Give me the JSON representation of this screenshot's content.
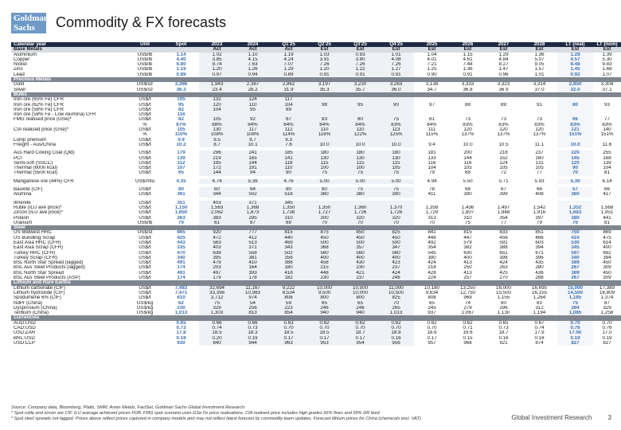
{
  "logo": "Goldman Sachs",
  "title": "Commodity & FX forecasts",
  "header": [
    "Calendar year",
    "Unit",
    "Spot",
    "2023",
    "2024",
    "Q1'25",
    "Q2'25",
    "Q3'25",
    "Q4'25",
    "2025",
    "2026",
    "2027",
    "2028",
    "LT (real)",
    "LT (nom)"
  ],
  "subheader": [
    "Base Metals",
    "",
    "",
    "Act",
    "Act",
    "Act",
    "Est",
    "Est",
    "Est",
    "Est",
    "Est",
    "Est",
    "Est",
    "Est",
    "Est"
  ],
  "rows": [
    [
      "Aluminium",
      "US$/lb",
      "1.14",
      "1.02",
      "1.10",
      "1.19",
      "1.03",
      "0.93",
      "1.01",
      "1.04",
      "1.15",
      "1.29",
      "1.36",
      "1.28",
      "1.39"
    ],
    [
      "Copper",
      "US$/lb",
      "4.40",
      "3.85",
      "4.15",
      "4.24",
      "3.91",
      "3.80",
      "4.08",
      "4.01",
      "4.61",
      "4.84",
      "5.07",
      "4.57",
      "5.30"
    ],
    [
      "Nickel",
      "US$/lb",
      "6.80",
      "9.74",
      "7.63",
      "7.07",
      "7.26",
      "7.26",
      "7.26",
      "7.21",
      "7.48",
      "8.27",
      "9.05",
      "8.48",
      "9.83"
    ],
    [
      "Zinc",
      "US$/lb",
      "1.19",
      "1.20",
      "1.26",
      "1.29",
      "1.20",
      "1.22",
      "1.27",
      "1.25",
      "1.36",
      "1.47",
      "1.57",
      "1.45",
      "1.68"
    ],
    [
      "Lead",
      "US$/lb",
      "0.89",
      "0.97",
      "0.94",
      "0.89",
      "0.91",
      "0.91",
      "0.91",
      "0.90",
      "0.91",
      "0.96",
      "1.01",
      "0.92",
      "1.07"
    ],
    {
      "section": "Precious Metals"
    },
    [
      "Gold",
      "US$/oz",
      "3,386",
      "1,943",
      "2,387",
      "2,862",
      "3,197",
      "3,230",
      "3,263",
      "3,138",
      "3,333",
      "3,323",
      "3,314",
      "2,850",
      "3,304"
    ],
    [
      "Silver",
      "US$/oz",
      "36.3",
      "23.4",
      "28.2",
      "31.9",
      "35.3",
      "35.7",
      "36.0",
      "34.7",
      "36.8",
      "36.9",
      "37.0",
      "32.0",
      "37.1"
    ],
    {
      "section": "Bulks"
    },
    [
      "Iron ore (65% Fe) CFR",
      "US$/t",
      "105",
      "132",
      "124",
      "117",
      "",
      "",
      "",
      "",
      "",
      "",
      "",
      "",
      ""
    ],
    [
      "Iron ore (62% Fe) CFR",
      "US$/t",
      "95",
      "120",
      "110",
      "104",
      "98",
      "95",
      "90",
      "97",
      "88",
      "89",
      "91",
      "80",
      "93"
    ],
    [
      "Iron ore (58% Fe) CFR",
      "US$/t",
      "82",
      "104",
      "95",
      "89",
      "",
      "",
      "",
      "",
      "",
      "",
      "",
      "",
      ""
    ],
    [
      "Iron ore (58% Fe - Low Alumina) CFR",
      "US$/t",
      "116",
      "",
      "",
      "",
      "",
      "",
      "",
      "",
      "",
      "",
      "",
      "",
      ""
    ],
    [
      "FMG realised price (GSe)*",
      "US$/t",
      "82",
      "105",
      "92",
      "87",
      "83",
      "80",
      "75",
      "81",
      "73",
      "73",
      "73",
      "66",
      "77"
    ],
    [
      "",
      "%",
      "87%",
      "88%",
      "84%",
      "84%",
      "84%",
      "84%",
      "83%",
      "84%",
      "83%",
      "83%",
      "83%",
      "83%",
      "83%"
    ],
    [
      "CIA realised price (GSe)*",
      "US$/t",
      "105",
      "130",
      "117",
      "112",
      "110",
      "110",
      "113",
      "111",
      "120",
      "120",
      "120",
      "121",
      "140"
    ],
    [
      "",
      "%",
      "110%",
      "108%",
      "108%",
      "114%",
      "116%",
      "122%",
      "125%",
      "115%",
      "137%",
      "137%",
      "137%",
      "151%",
      "151%"
    ],
    [
      "Lump premium",
      "US$/t",
      "9.9",
      "9.5",
      "8.7",
      "9.3",
      "",
      "",
      "",
      "",
      "",
      "",
      "",
      "",
      ""
    ],
    [
      "Freight - Aus/China",
      "US$/t",
      "10.2",
      "8.7",
      "10.1",
      "7.6",
      "10.0",
      "10.0",
      "10.0",
      "9.4",
      "10.0",
      "10.5",
      "11.1",
      "10.0",
      "11.6"
    ],
    {
      "blank": true
    },
    [
      "Aus Hard Coking Coal (Qld)",
      "US$/t",
      "179",
      "296",
      "241",
      "185",
      "180",
      "180",
      "180",
      "181",
      "200",
      "218",
      "237",
      "220",
      "255"
    ],
    [
      "PCI",
      "US$/t",
      "139",
      "219",
      "165",
      "141",
      "130",
      "130",
      "130",
      "133",
      "144",
      "152",
      "160",
      "145",
      "168"
    ],
    [
      "Semi-soft (SSCC)",
      "US$/t",
      "112",
      "195",
      "144",
      "118",
      "115",
      "115",
      "115",
      "116",
      "116",
      "124",
      "131",
      "120",
      "139"
    ],
    [
      "Thermal (6000 kcal)",
      "US$/t",
      "107",
      "172",
      "191",
      "110",
      "100",
      "100",
      "105",
      "104",
      "105",
      "105",
      "105",
      "90",
      "104"
    ],
    [
      "Thermal (5500 kcal)",
      "US$/t",
      "65",
      "144",
      "94",
      "90",
      "75",
      "75",
      "75",
      "79",
      "68",
      "72",
      "77",
      "70",
      "81"
    ],
    {
      "blank": true
    },
    [
      "Manganese ore (44%) CFR",
      "US$/mtu",
      "4.35",
      "4.74",
      "5.39",
      "4.76",
      "5.00",
      "5.00",
      "5.00",
      "4.94",
      "5.50",
      "5.71",
      "5.93",
      "5.30",
      "6.14"
    ],
    {
      "blank": true
    },
    [
      "Bauxite (CIF)",
      "US$/t",
      "80",
      "60",
      "64",
      "80",
      "80",
      "75",
      "75",
      "78",
      "68",
      "67",
      "66",
      "57",
      "66"
    ],
    [
      "Alumina",
      "US$/t",
      "361",
      "344",
      "502",
      "516",
      "360",
      "380",
      "390",
      "411",
      "390",
      "399",
      "408",
      "360",
      "417"
    ],
    {
      "blank": true
    },
    [
      "Ilmenite",
      "US$/t",
      "351",
      "403",
      "371",
      "345",
      "",
      "",
      "",
      "",
      "",
      "",
      "",
      "",
      ""
    ],
    [
      "Rutile (ILU ave price)*",
      "US$/t",
      "1,150",
      "1,563",
      "1,368",
      "1,350",
      "1,350",
      "1,360",
      "1,370",
      "1,358",
      "1,436",
      "1,497",
      "1,542",
      "1,352",
      "1,568"
    ],
    [
      "Zircon (ILU ave price)*",
      "US$/t",
      "1,850",
      "2,062",
      "1,873",
      "1,738",
      "1,727",
      "1,726",
      "1,726",
      "1,729",
      "1,807",
      "1,848",
      "1,916",
      "1,683",
      "1,951"
    ],
    [
      "Potash",
      "US$/t",
      "363",
      "383",
      "295",
      "310",
      "300",
      "320",
      "320",
      "313",
      "310",
      "354",
      "397",
      "380",
      "441"
    ],
    [
      "Uranium",
      "US$/lb",
      "70",
      "61",
      "87",
      "69",
      "70",
      "70",
      "70",
      "70",
      "75",
      "77",
      "79",
      "70",
      "81"
    ],
    {
      "section": "Steel"
    },
    [
      "US Midwest HRC",
      "US$/st",
      "865",
      "920",
      "777",
      "815",
      "875",
      "850",
      "825",
      "841",
      "815",
      "833",
      "851",
      "750",
      "869"
    ],
    [
      "US Bundling Scrap",
      "US$/t",
      "425",
      "472",
      "412",
      "440",
      "450",
      "450",
      "450",
      "448",
      "447",
      "456",
      "466",
      "410",
      "475"
    ],
    [
      "East Asia HRC (CFR)",
      "US$/t",
      "443",
      "563",
      "513",
      "469",
      "500",
      "500",
      "500",
      "492",
      "579",
      "591",
      "603",
      "530",
      "614"
    ],
    [
      "East Asia Scrap (CFR)",
      "US$/t",
      "335",
      "403",
      "371",
      "343",
      "368",
      "357",
      "347",
      "354",
      "382",
      "388",
      "394",
      "345",
      "400"
    ],
    [
      "Turkey HRC (CFR)",
      "US$/t",
      "470",
      "638",
      "558",
      "502",
      "560",
      "560",
      "560",
      "545",
      "630",
      "651",
      "671",
      "597",
      "692"
    ],
    [
      "Turkey Scrap (CFR)",
      "US$/t",
      "340",
      "395",
      "381",
      "358",
      "400",
      "400",
      "400",
      "390",
      "400",
      "398",
      "396",
      "340",
      "394"
    ],
    [
      "BSL North Star Spread (lagged)",
      "US$/t",
      "491",
      "479",
      "410",
      "388",
      "458",
      "430",
      "423",
      "424",
      "413",
      "424",
      "435",
      "389",
      "450"
    ],
    [
      "BSL Aus Steel Products (lagged)",
      "US$/t",
      "174",
      "203",
      "164",
      "180",
      "215",
      "230",
      "237",
      "218",
      "250",
      "263",
      "280",
      "267",
      "309"
    ],
    [
      "BSL North Star Spread",
      "US$/t",
      "491",
      "497",
      "393",
      "418",
      "448",
      "421",
      "424",
      "428",
      "413",
      "425",
      "436",
      "389",
      "450"
    ],
    [
      "BSL Aus Steel Products (ASP)",
      "US$/t",
      "174",
      "179",
      "178",
      "182",
      "230",
      "237",
      "248",
      "224",
      "257",
      "270",
      "288",
      "267",
      "309"
    ],
    {
      "section": "Lithium and Rare Earths"
    },
    [
      "Lithium carbonate (CIF)",
      "US$/t",
      "7,483",
      "32,694",
      "11,167",
      "9,222",
      "10,000",
      "10,500",
      "11,000",
      "10,180",
      "13,250",
      "16,000",
      "16,695",
      "15,000",
      "17,389"
    ],
    [
      "Lithium hydroxide (CIF)",
      "US$/t",
      "7,471",
      "33,398",
      "10,983",
      "8,534",
      "9,500",
      "10,000",
      "10,500",
      "9,634",
      "12,750",
      "15,500",
      "16,155",
      "14,500",
      "16,809"
    ],
    [
      "Spodumene 6% (CIF)",
      "US$/t",
      "610",
      "3,712",
      "974",
      "808",
      "800",
      "800",
      "825",
      "808",
      "969",
      "1,155",
      "1,264",
      "1,185",
      "1,374"
    ],
    [
      "NdPr (China)",
      "US$/kg",
      "62",
      "75",
      "54",
      "59",
      "65",
      "65",
      "70",
      "65",
      "74",
      "80",
      "83",
      "75",
      "87"
    ],
    [
      "Dysprosium (China)",
      "US$/kg",
      "230",
      "329",
      "256",
      "223",
      "246",
      "246",
      "265",
      "245",
      "279",
      "296",
      "312",
      "284",
      "329"
    ],
    [
      "Terbium (China)",
      "US$/kg",
      "1,013",
      "1,303",
      "813",
      "854",
      "940",
      "940",
      "1,013",
      "937",
      "1,067",
      "1,130",
      "1,194",
      "1,085",
      "1,258"
    ],
    {
      "section": "Currencies"
    },
    [
      "AUD:USD",
      "",
      "0.65",
      "0.66",
      "0.66",
      "0.63",
      "0.62",
      "0.62",
      "0.62",
      "0.62",
      "0.62",
      "0.65",
      "0.67",
      "0.70",
      "0.70"
    ],
    [
      "CAD:USD",
      "",
      "0.73",
      "0.74",
      "0.73",
      "0.70",
      "0.70",
      "0.70",
      "0.70",
      "0.70",
      "0.71",
      "0.73",
      "0.74",
      "0.76",
      "0.76"
    ],
    [
      "USD:ZAR",
      "",
      "17.8",
      "18.5",
      "18.3",
      "18.5",
      "18.5",
      "18.7",
      "18.8",
      "18.6",
      "19.6",
      "18.7",
      "17.9",
      "17.00",
      "17.0"
    ],
    [
      "BRL:USD",
      "",
      "0.18",
      "0.20",
      "0.19",
      "0.17",
      "0.17",
      "0.17",
      "0.16",
      "0.17",
      "0.15",
      "0.16",
      "0.18",
      "0.19",
      "0.19"
    ],
    [
      "USD:CLP",
      "",
      "930",
      "840",
      "944",
      "963",
      "953",
      "954",
      "956",
      "957",
      "968",
      "921",
      "874",
      "827",
      "827"
    ]
  ],
  "footnotes": [
    "Source: Company data, Bloomberg, Platts, SMM, Asian Metals, FactSet, Goldman Sachs Global Investment Research.",
    "* Spot rutile and zircon are CIF. ILU average achieved prices FOB. FMG spot scenario uses GSe Fe price realisations. CIA realised price includes high grades 66% fines and 99% DR feed",
    "* Spot steel spreads not lagged. Prices above reflect prices captured in company models and may not reflect latest forecast by commodity team updates. Forecast lithium prices for China (chemicals excl. VAT)"
  ],
  "footer": {
    "text": "Global Investment Research",
    "page": "3"
  },
  "colors": {
    "header_bg": "#1f2a44",
    "section_bg": "#7f8690",
    "subheader_bg": "#d9dde3",
    "accent": "#3b6fb6",
    "logo_bg": "#6e9ac7"
  }
}
